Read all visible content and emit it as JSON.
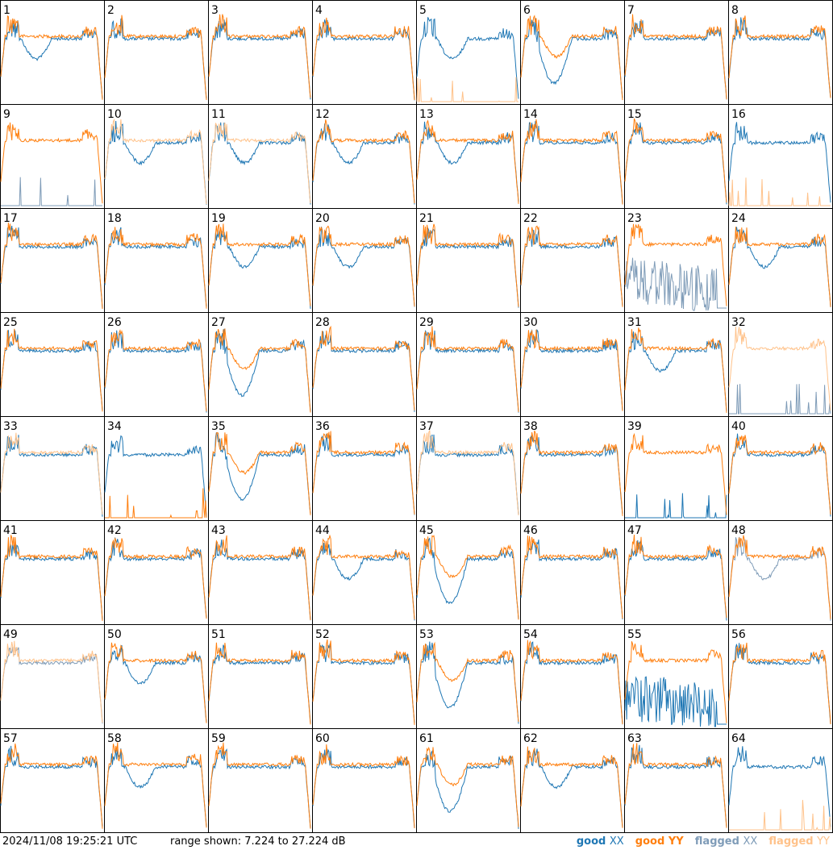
{
  "footer": {
    "timestamp": "2024/11/08 19:25:21 UTC",
    "range_text": "range shown: 7.224 to 27.224 dB"
  },
  "legend": {
    "good_xx": "good",
    "good_xx_tag": "XX",
    "good_yy": "good",
    "good_yy_tag": "YY",
    "flagged_xx": "flagged",
    "flagged_xx_tag": "XX",
    "flagged_yy": "flagged",
    "flagged_yy_tag": "YY"
  },
  "colors": {
    "good_xx": "#1f77b4",
    "good_yy": "#ff7f0e",
    "flagged_xx": "#7f9cb8",
    "flagged_yy": "#ffc28a",
    "frame": "#000000"
  },
  "chart_data": {
    "type": "line",
    "title": "",
    "ylim": [
      7.224,
      27.224
    ],
    "yunit": "dB",
    "grid": false,
    "legend_placement": "bottom-right",
    "panel_count": 64,
    "columns": 8,
    "panels": [
      {
        "label": "1",
        "xx": "good",
        "yy": "good",
        "shape": "dip"
      },
      {
        "label": "2",
        "xx": "good",
        "yy": "good",
        "shape": "flat"
      },
      {
        "label": "3",
        "xx": "good",
        "yy": "good",
        "shape": "flat"
      },
      {
        "label": "4",
        "xx": "good",
        "yy": "good",
        "shape": "flat"
      },
      {
        "label": "5",
        "xx": "good",
        "yy": "flagged",
        "shape": "dip",
        "yy_level": "low"
      },
      {
        "label": "6",
        "xx": "good",
        "yy": "good",
        "shape": "deepdip"
      },
      {
        "label": "7",
        "xx": "good",
        "yy": "good",
        "shape": "flat"
      },
      {
        "label": "8",
        "xx": "good",
        "yy": "good",
        "shape": "flat"
      },
      {
        "label": "9",
        "xx": "flagged",
        "yy": "good",
        "shape": "flat",
        "xx_level": "low"
      },
      {
        "label": "10",
        "xx": "good",
        "yy": "flagged",
        "shape": "dip"
      },
      {
        "label": "11",
        "xx": "good",
        "yy": "flagged",
        "shape": "dip"
      },
      {
        "label": "12",
        "xx": "good",
        "yy": "good",
        "shape": "dip"
      },
      {
        "label": "13",
        "xx": "good",
        "yy": "good",
        "shape": "dip"
      },
      {
        "label": "14",
        "xx": "good",
        "yy": "good",
        "shape": "flat"
      },
      {
        "label": "15",
        "xx": "good",
        "yy": "good",
        "shape": "flat"
      },
      {
        "label": "16",
        "xx": "good",
        "yy": "flagged",
        "shape": "flat",
        "yy_level": "low"
      },
      {
        "label": "17",
        "xx": "good",
        "yy": "good",
        "shape": "flat"
      },
      {
        "label": "18",
        "xx": "good",
        "yy": "good",
        "shape": "flat"
      },
      {
        "label": "19",
        "xx": "good",
        "yy": "good",
        "shape": "dip"
      },
      {
        "label": "20",
        "xx": "good",
        "yy": "good",
        "shape": "dip"
      },
      {
        "label": "21",
        "xx": "good",
        "yy": "good",
        "shape": "flat"
      },
      {
        "label": "22",
        "xx": "good",
        "yy": "good",
        "shape": "flat"
      },
      {
        "label": "23",
        "xx": "flagged",
        "yy": "good",
        "shape": "flat",
        "xx_level": "noisy"
      },
      {
        "label": "24",
        "xx": "good",
        "yy": "good",
        "shape": "dip"
      },
      {
        "label": "25",
        "xx": "good",
        "yy": "good",
        "shape": "flat"
      },
      {
        "label": "26",
        "xx": "good",
        "yy": "good",
        "shape": "flat"
      },
      {
        "label": "27",
        "xx": "good",
        "yy": "good",
        "shape": "deepdip"
      },
      {
        "label": "28",
        "xx": "good",
        "yy": "good",
        "shape": "flat"
      },
      {
        "label": "29",
        "xx": "good",
        "yy": "good",
        "shape": "flat"
      },
      {
        "label": "30",
        "xx": "good",
        "yy": "good",
        "shape": "flat"
      },
      {
        "label": "31",
        "xx": "good",
        "yy": "good",
        "shape": "dip"
      },
      {
        "label": "32",
        "xx": "flagged",
        "yy": "flagged",
        "shape": "flat",
        "xx_level": "low"
      },
      {
        "label": "33",
        "xx": "good",
        "yy": "flagged",
        "shape": "flat"
      },
      {
        "label": "34",
        "xx": "good",
        "yy": "good",
        "shape": "flat",
        "yy_level": "low"
      },
      {
        "label": "35",
        "xx": "good",
        "yy": "good",
        "shape": "deepdip"
      },
      {
        "label": "36",
        "xx": "good",
        "yy": "good",
        "shape": "flat"
      },
      {
        "label": "37",
        "xx": "good",
        "yy": "flagged",
        "shape": "flat"
      },
      {
        "label": "38",
        "xx": "good",
        "yy": "good",
        "shape": "flat"
      },
      {
        "label": "39",
        "xx": "good",
        "yy": "good",
        "shape": "flat",
        "xx_level": "low"
      },
      {
        "label": "40",
        "xx": "good",
        "yy": "good",
        "shape": "flat"
      },
      {
        "label": "41",
        "xx": "good",
        "yy": "good",
        "shape": "flat"
      },
      {
        "label": "42",
        "xx": "good",
        "yy": "good",
        "shape": "flat"
      },
      {
        "label": "43",
        "xx": "good",
        "yy": "good",
        "shape": "flat"
      },
      {
        "label": "44",
        "xx": "good",
        "yy": "good",
        "shape": "dip"
      },
      {
        "label": "45",
        "xx": "good",
        "yy": "good",
        "shape": "deepdip"
      },
      {
        "label": "46",
        "xx": "good",
        "yy": "good",
        "shape": "flat"
      },
      {
        "label": "47",
        "xx": "good",
        "yy": "good",
        "shape": "flat"
      },
      {
        "label": "48",
        "xx": "flagged",
        "yy": "good",
        "shape": "dip"
      },
      {
        "label": "49",
        "xx": "flagged",
        "yy": "flagged",
        "shape": "flat"
      },
      {
        "label": "50",
        "xx": "good",
        "yy": "good",
        "shape": "dip"
      },
      {
        "label": "51",
        "xx": "good",
        "yy": "good",
        "shape": "flat"
      },
      {
        "label": "52",
        "xx": "good",
        "yy": "good",
        "shape": "flat"
      },
      {
        "label": "53",
        "xx": "good",
        "yy": "good",
        "shape": "deepdip"
      },
      {
        "label": "54",
        "xx": "good",
        "yy": "good",
        "shape": "flat"
      },
      {
        "label": "55",
        "xx": "good",
        "yy": "good",
        "shape": "flat",
        "xx_level": "noisy"
      },
      {
        "label": "56",
        "xx": "good",
        "yy": "good",
        "shape": "flat"
      },
      {
        "label": "57",
        "xx": "good",
        "yy": "good",
        "shape": "flat"
      },
      {
        "label": "58",
        "xx": "good",
        "yy": "good",
        "shape": "dip"
      },
      {
        "label": "59",
        "xx": "good",
        "yy": "good",
        "shape": "flat"
      },
      {
        "label": "60",
        "xx": "good",
        "yy": "good",
        "shape": "flat"
      },
      {
        "label": "61",
        "xx": "good",
        "yy": "good",
        "shape": "deepdip"
      },
      {
        "label": "62",
        "xx": "good",
        "yy": "good",
        "shape": "dip"
      },
      {
        "label": "63",
        "xx": "good",
        "yy": "good",
        "shape": "flat"
      },
      {
        "label": "64",
        "xx": "good",
        "yy": "flagged",
        "shape": "flat",
        "yy_level": "low"
      }
    ]
  }
}
